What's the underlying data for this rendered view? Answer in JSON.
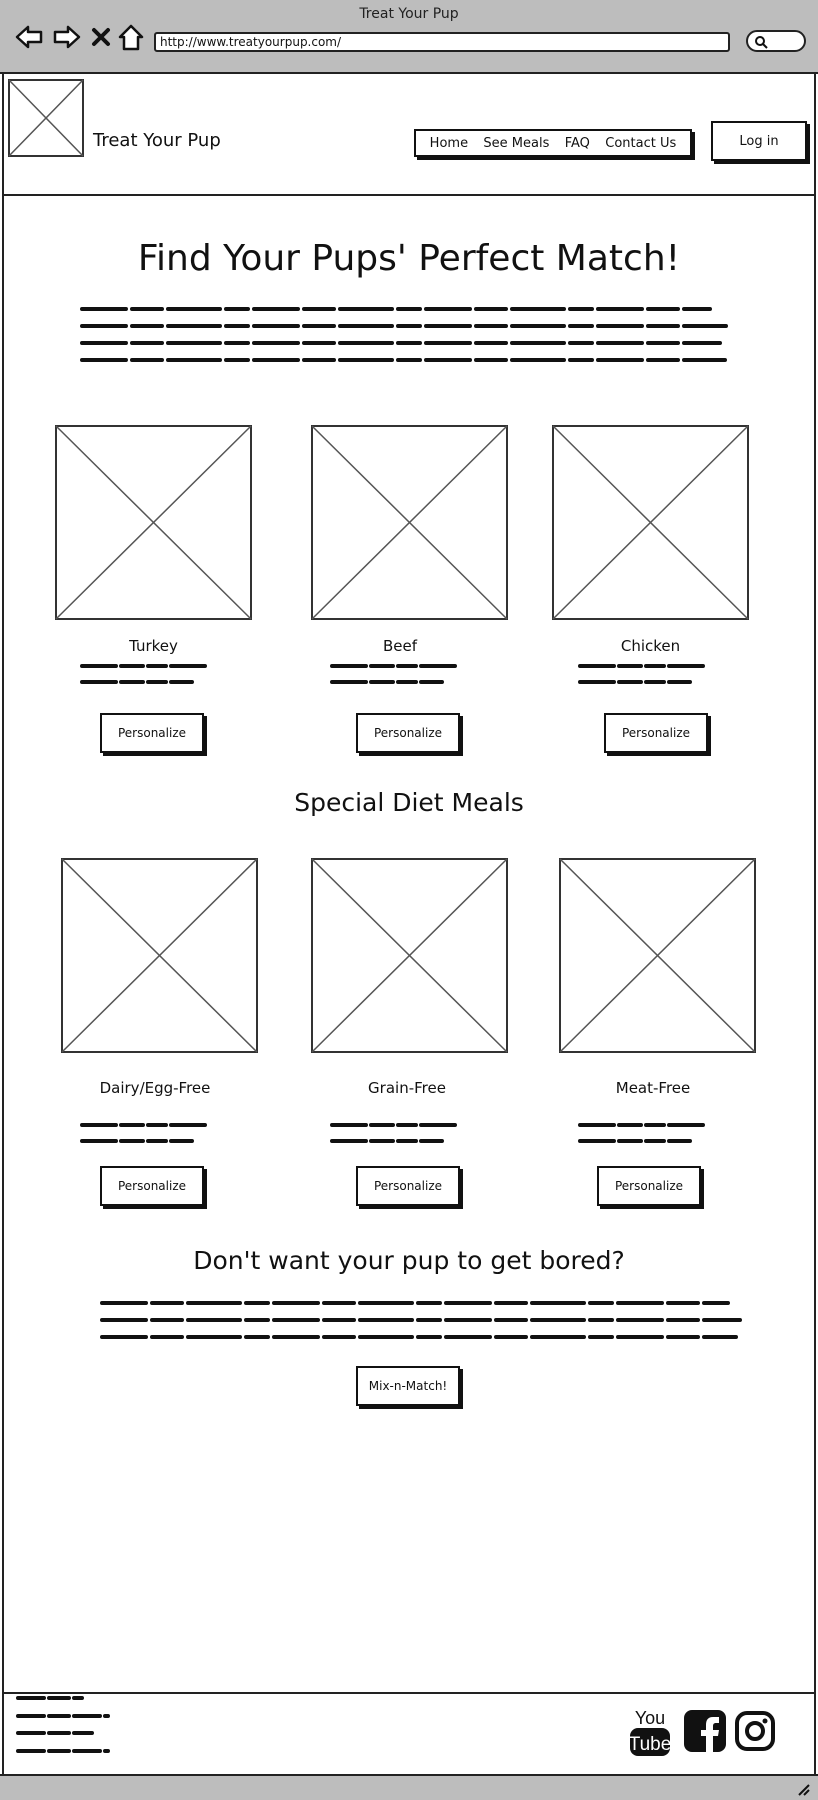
{
  "window": {
    "title": "Treat Your Pup"
  },
  "browser": {
    "url": "http://www.treatyourpup.com/"
  },
  "header": {
    "brand": "Treat Your Pup",
    "nav": [
      "Home",
      "See Meals",
      "FAQ",
      "Contact Us"
    ],
    "login_label": "Log in"
  },
  "hero": {
    "title": "Find Your Pups' Perfect Match!"
  },
  "meals": {
    "items": [
      {
        "name": "Turkey",
        "button": "Personalize"
      },
      {
        "name": "Beef",
        "button": "Personalize"
      },
      {
        "name": "Chicken",
        "button": "Personalize"
      }
    ]
  },
  "special": {
    "title": "Special Diet Meals",
    "items": [
      {
        "name": "Dairy/Egg-Free",
        "button": "Personalize"
      },
      {
        "name": "Grain-Free",
        "button": "Personalize"
      },
      {
        "name": "Meat-Free",
        "button": "Personalize"
      }
    ]
  },
  "mix": {
    "title": "Don't want your pup to get bored?",
    "button": "Mix-n-Match!"
  },
  "footer": {
    "social_icons": [
      "youtube-icon",
      "facebook-icon",
      "instagram-icon"
    ],
    "youtube_top": "You",
    "youtube_bottom": "Tube"
  }
}
